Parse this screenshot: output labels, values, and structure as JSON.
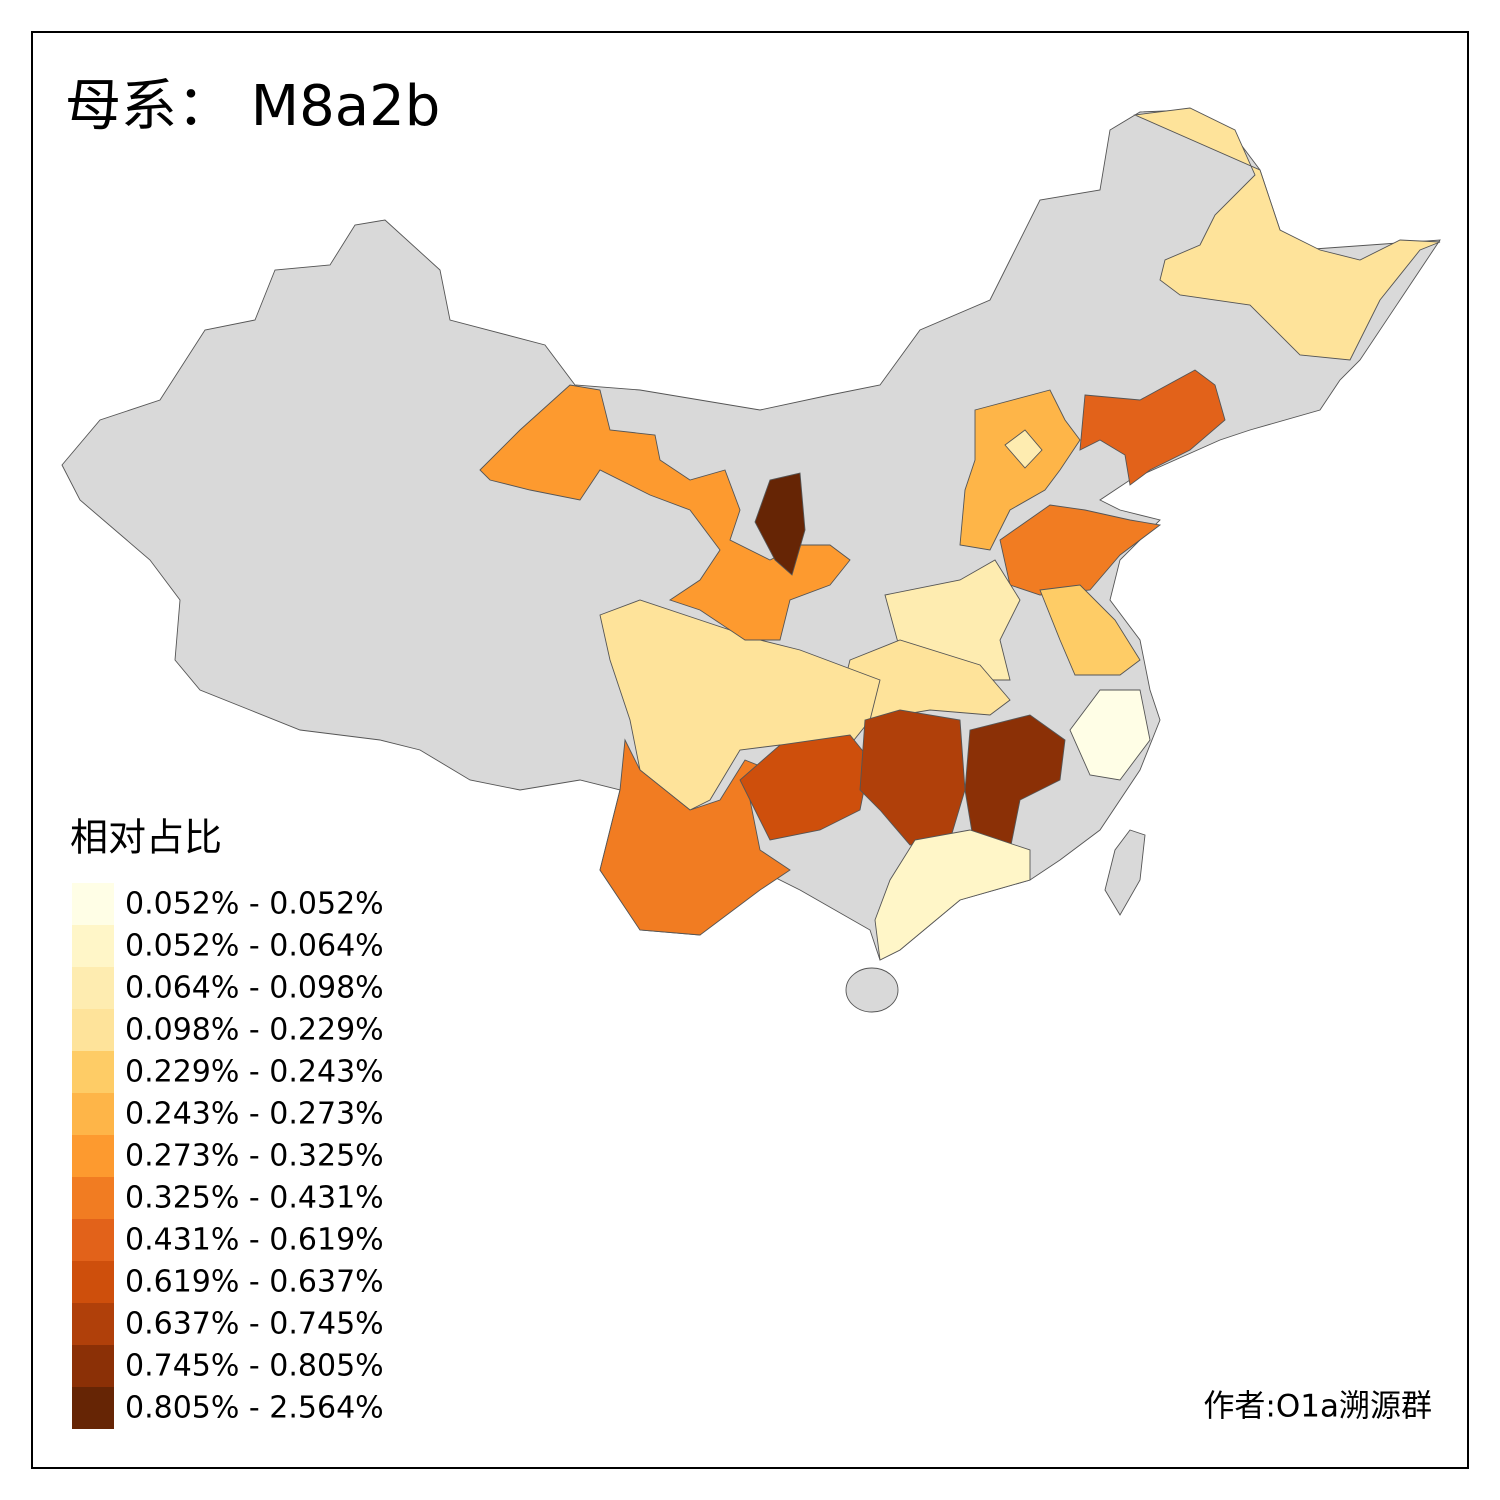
{
  "title": "母系： M8a2b",
  "legend": {
    "title": "相对占比",
    "items": [
      {
        "label": "0.052% - 0.052%",
        "color": "#fffee6"
      },
      {
        "label": "0.052% - 0.064%",
        "color": "#fff6c8"
      },
      {
        "label": "0.064% - 0.098%",
        "color": "#feecb0"
      },
      {
        "label": "0.098% - 0.229%",
        "color": "#fee39a"
      },
      {
        "label": "0.229% - 0.243%",
        "color": "#fecc66"
      },
      {
        "label": "0.243% - 0.273%",
        "color": "#feb548"
      },
      {
        "label": "0.273% - 0.325%",
        "color": "#fd9a2f"
      },
      {
        "label": "0.325% - 0.431%",
        "color": "#f17c22"
      },
      {
        "label": "0.431% - 0.619%",
        "color": "#e2621a"
      },
      {
        "label": "0.619% - 0.637%",
        "color": "#ce4f0c"
      },
      {
        "label": "0.637% - 0.745%",
        "color": "#b0400a"
      },
      {
        "label": "0.745% - 0.805%",
        "color": "#8b3006"
      },
      {
        "label": "0.805% - 2.564%",
        "color": "#662505"
      }
    ]
  },
  "author": "作者:O1a溯源群"
}
